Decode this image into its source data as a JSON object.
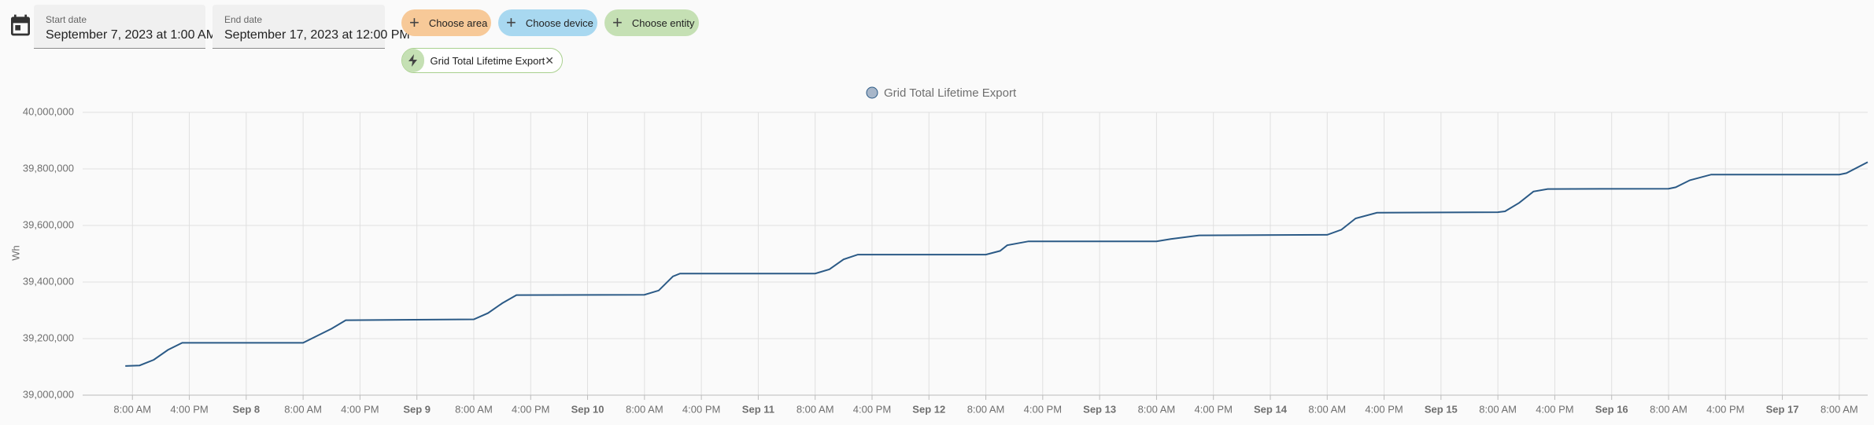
{
  "header": {
    "start_label": "Start date",
    "start_value": "September 7, 2023 at 1:00 AM",
    "end_label": "End date",
    "end_value": "September 17, 2023 at 12:00 PM"
  },
  "filters": {
    "area": "Choose area",
    "device": "Choose device",
    "entity": "Choose entity"
  },
  "selected_entity": "Grid Total Lifetime Export",
  "chart_data": {
    "type": "line",
    "ylabel": "Wh",
    "grid": true,
    "x": [
      "Sep 7 07:00",
      "Sep 7 09:00",
      "Sep 7 11:00",
      "Sep 7 13:00",
      "Sep 7 15:00",
      "Sep 8 08:00",
      "Sep 8 10:00",
      "Sep 8 12:00",
      "Sep 8 14:00",
      "Sep 9 08:00",
      "Sep 9 10:00",
      "Sep 9 12:00",
      "Sep 9 14:00",
      "Sep 10 08:00",
      "Sep 10 10:00",
      "Sep 10 12:00",
      "Sep 10 13:00",
      "Sep 11 08:00",
      "Sep 11 10:00",
      "Sep 11 12:00",
      "Sep 11 14:00",
      "Sep 12 08:00",
      "Sep 12 10:00",
      "Sep 12 11:00",
      "Sep 12 14:00",
      "Sep 13 08:00",
      "Sep 13 10:00",
      "Sep 13 14:00",
      "Sep 14 08:00",
      "Sep 14 10:00",
      "Sep 14 12:00",
      "Sep 14 15:00",
      "Sep 15 08:00",
      "Sep 15 09:00",
      "Sep 15 11:00",
      "Sep 15 13:00",
      "Sep 15 15:00",
      "Sep 16 08:00",
      "Sep 16 09:00",
      "Sep 16 11:00",
      "Sep 16 14:00",
      "Sep 17 08:00",
      "Sep 17 09:00",
      "Sep 17 12:00"
    ],
    "series": [
      {
        "name": "Grid Total Lifetime Export",
        "color": "#2b5a86",
        "values": [
          39103000,
          39105000,
          39125000,
          39160000,
          39185000,
          39185000,
          39210000,
          39235000,
          39265000,
          39268000,
          39290000,
          39325000,
          39354000,
          39355000,
          39370000,
          39420000,
          39430000,
          39430000,
          39445000,
          39480000,
          39497000,
          39497000,
          39510000,
          39530000,
          39544000,
          39544000,
          39552000,
          39565000,
          39567000,
          39585000,
          39625000,
          39645000,
          39647000,
          39650000,
          39680000,
          39720000,
          39729000,
          39730000,
          39735000,
          39760000,
          39780000,
          39780000,
          39785000,
          39824000
        ]
      }
    ],
    "xlim": [
      "Sep 7 01:00",
      "Sep 17 12:00"
    ],
    "xticks": [
      {
        "value": "Sep 7 08:00",
        "label": "8:00 AM"
      },
      {
        "value": "Sep 7 16:00",
        "label": "4:00 PM"
      },
      {
        "value": "Sep 8 00:00",
        "label": "Sep 8"
      },
      {
        "value": "Sep 8 08:00",
        "label": "8:00 AM"
      },
      {
        "value": "Sep 8 16:00",
        "label": "4:00 PM"
      },
      {
        "value": "Sep 9 00:00",
        "label": "Sep 9"
      },
      {
        "value": "Sep 9 08:00",
        "label": "8:00 AM"
      },
      {
        "value": "Sep 9 16:00",
        "label": "4:00 PM"
      },
      {
        "value": "Sep 10 00:00",
        "label": "Sep 10"
      },
      {
        "value": "Sep 10 08:00",
        "label": "8:00 AM"
      },
      {
        "value": "Sep 10 16:00",
        "label": "4:00 PM"
      },
      {
        "value": "Sep 11 00:00",
        "label": "Sep 11"
      },
      {
        "value": "Sep 11 08:00",
        "label": "8:00 AM"
      },
      {
        "value": "Sep 11 16:00",
        "label": "4:00 PM"
      },
      {
        "value": "Sep 12 00:00",
        "label": "Sep 12"
      },
      {
        "value": "Sep 12 08:00",
        "label": "8:00 AM"
      },
      {
        "value": "Sep 12 16:00",
        "label": "4:00 PM"
      },
      {
        "value": "Sep 13 00:00",
        "label": "Sep 13"
      },
      {
        "value": "Sep 13 08:00",
        "label": "8:00 AM"
      },
      {
        "value": "Sep 13 16:00",
        "label": "4:00 PM"
      },
      {
        "value": "Sep 14 00:00",
        "label": "Sep 14"
      },
      {
        "value": "Sep 14 08:00",
        "label": "8:00 AM"
      },
      {
        "value": "Sep 14 16:00",
        "label": "4:00 PM"
      },
      {
        "value": "Sep 15 00:00",
        "label": "Sep 15"
      },
      {
        "value": "Sep 15 08:00",
        "label": "8:00 AM"
      },
      {
        "value": "Sep 15 16:00",
        "label": "4:00 PM"
      },
      {
        "value": "Sep 16 00:00",
        "label": "Sep 16"
      },
      {
        "value": "Sep 16 08:00",
        "label": "8:00 AM"
      },
      {
        "value": "Sep 16 16:00",
        "label": "4:00 PM"
      },
      {
        "value": "Sep 17 00:00",
        "label": "Sep 17"
      },
      {
        "value": "Sep 17 08:00",
        "label": "8:00 AM"
      }
    ],
    "ylim": [
      39000000,
      40000000
    ],
    "yticks": [
      {
        "value": 39000000,
        "label": "39,000,000"
      },
      {
        "value": 39200000,
        "label": "39,200,000"
      },
      {
        "value": 39400000,
        "label": "39,400,000"
      },
      {
        "value": 39600000,
        "label": "39,600,000"
      },
      {
        "value": 39800000,
        "label": "39,800,000"
      },
      {
        "value": 40000000,
        "label": "40,000,000"
      }
    ]
  }
}
